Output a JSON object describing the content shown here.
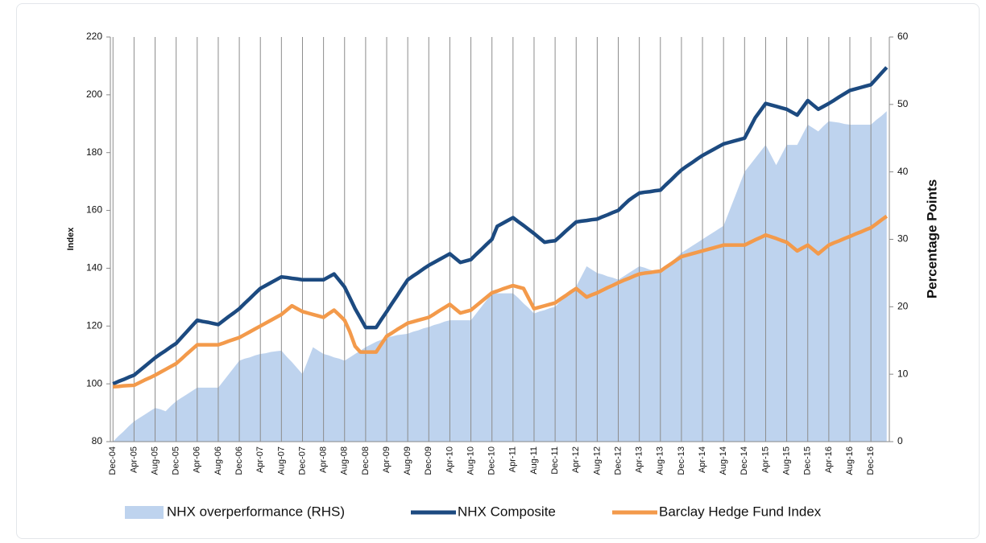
{
  "chart_data": {
    "type": "line",
    "categories": [
      "Dec-04",
      null,
      null,
      null,
      "Apr-05",
      null,
      null,
      null,
      "Aug-05",
      null,
      null,
      null,
      "Dec-05",
      null,
      null,
      null,
      "Apr-06",
      null,
      null,
      null,
      "Aug-06",
      null,
      null,
      null,
      "Dec-06",
      null,
      null,
      null,
      "Apr-07",
      null,
      null,
      null,
      "Aug-07",
      null,
      null,
      null,
      "Dec-07",
      null,
      null,
      null,
      "Apr-08",
      null,
      null,
      null,
      "Aug-08",
      null,
      null,
      null,
      "Dec-08",
      null,
      null,
      null,
      "Apr-09",
      null,
      null,
      null,
      "Aug-09",
      null,
      null,
      null,
      "Dec-09",
      null,
      null,
      null,
      "Apr-10",
      null,
      null,
      null,
      "Aug-10",
      null,
      null,
      null,
      "Dec-10",
      null,
      null,
      null,
      "Apr-11",
      null,
      null,
      null,
      "Aug-11",
      null,
      null,
      null,
      "Dec-11",
      null,
      null,
      null,
      "Apr-12",
      null,
      null,
      null,
      "Aug-12",
      null,
      null,
      null,
      "Dec-12",
      null,
      null,
      null,
      "Apr-13",
      null,
      null,
      null,
      "Aug-13",
      null,
      null,
      null,
      "Dec-13",
      null,
      null,
      null,
      "Apr-14",
      null,
      null,
      null,
      "Aug-14",
      null,
      null,
      null,
      "Dec-14",
      null,
      null,
      null,
      "Apr-15",
      null,
      null,
      null,
      "Aug-15",
      null,
      null,
      null,
      "Dec-15",
      null,
      null,
      null,
      "Apr-16",
      null,
      null,
      null,
      "Aug-16",
      null,
      null,
      null,
      "Dec-16",
      null,
      null,
      null
    ],
    "series": [
      {
        "name": "NHX overperformance (RHS)",
        "type": "area",
        "axis": "y2",
        "color": "#bed3ee",
        "values": [
          0,
          0.8,
          1.5,
          2.3,
          3,
          3.5,
          4,
          4.5,
          5,
          4.8,
          4.5,
          5.3,
          6,
          6.5,
          7,
          7.5,
          8,
          8,
          8,
          8,
          8,
          9,
          10,
          11,
          12,
          12.3,
          12.5,
          12.8,
          13,
          13.1,
          13.3,
          13.4,
          13.5,
          12.6,
          11.8,
          10.9,
          10,
          12,
          14,
          13.5,
          13,
          12.8,
          12.5,
          12.3,
          12,
          12.5,
          13,
          13.5,
          14,
          14.4,
          14.8,
          15.1,
          15.5,
          15.6,
          15.8,
          15.9,
          16,
          16.3,
          16.5,
          16.8,
          17,
          17.3,
          17.5,
          17.8,
          18,
          18,
          18,
          18,
          18,
          19,
          20,
          21,
          22,
          22,
          22,
          22,
          22,
          21.3,
          20.5,
          19.8,
          19,
          19.3,
          19.5,
          19.8,
          20,
          20.8,
          21.5,
          22.3,
          23,
          24.5,
          26,
          25.5,
          25,
          24.8,
          24.5,
          24.3,
          24,
          24.5,
          25,
          25.5,
          26,
          25.8,
          25.5,
          25.3,
          25,
          25.8,
          26.5,
          27.3,
          28,
          28.5,
          29,
          29.5,
          30,
          30.5,
          31,
          31.5,
          32,
          34,
          36,
          38,
          40,
          41,
          42,
          43,
          44,
          42.5,
          41,
          42.5,
          44,
          44,
          44,
          45.5,
          47,
          46.5,
          46,
          46.8,
          47.5,
          47.4,
          47.3,
          47.1,
          47,
          47,
          47,
          47,
          47,
          47.7,
          48.3,
          49
        ]
      },
      {
        "name": "NHX Composite",
        "type": "line",
        "color": "#1c4a80",
        "values": [
          100,
          100.8,
          101.5,
          102.3,
          103,
          104.5,
          106,
          107.5,
          109,
          110.3,
          111.5,
          112.8,
          114,
          116,
          118,
          120,
          122,
          121.6,
          121.3,
          120.9,
          120.5,
          121.9,
          123.3,
          124.6,
          126,
          127.8,
          129.5,
          131.3,
          133,
          134,
          135,
          136,
          137,
          136.8,
          136.5,
          136.3,
          136,
          136,
          136,
          136,
          136,
          137,
          138,
          135.8,
          133.5,
          129.8,
          126,
          122.8,
          119.5,
          119.5,
          119.5,
          122.3,
          125,
          127.8,
          130.5,
          133.3,
          136,
          137.3,
          138.5,
          139.8,
          141,
          142,
          143,
          144,
          145,
          143.5,
          142,
          142.5,
          143,
          144.8,
          146.5,
          148.3,
          150,
          154.5,
          155.5,
          156.5,
          157.5,
          156.1,
          154.8,
          153.4,
          152,
          150.5,
          149,
          149.3,
          149.5,
          151.1,
          152.8,
          154.4,
          156,
          156.3,
          156.5,
          156.8,
          157,
          157.8,
          158.5,
          159.3,
          160,
          161.8,
          163.5,
          164.8,
          166,
          166.3,
          166.5,
          166.8,
          167,
          168.8,
          170.5,
          172.3,
          174,
          175.3,
          176.5,
          177.8,
          179,
          180,
          181,
          182,
          183,
          183.5,
          184,
          184.5,
          185,
          188.5,
          192,
          194.5,
          197,
          196.5,
          196,
          195.5,
          195,
          194,
          193,
          195.5,
          198,
          196.5,
          195,
          196,
          197,
          198.1,
          199.3,
          200.4,
          201.5,
          202,
          202.5,
          203,
          203.5,
          205.5,
          207.5,
          209.5
        ]
      },
      {
        "name": "Barclay Hedge Fund Index",
        "type": "line",
        "color": "#f39a4b",
        "values": [
          99,
          99.1,
          99.3,
          99.4,
          99.5,
          100.4,
          101.3,
          102.1,
          103,
          104,
          105,
          106,
          107,
          108.6,
          110.3,
          111.9,
          113.5,
          113.5,
          113.5,
          113.5,
          113.5,
          114.1,
          114.8,
          115.4,
          116,
          117,
          118,
          119,
          120,
          121,
          122,
          123,
          124,
          125.5,
          127,
          126,
          125,
          124.5,
          124,
          123.5,
          123,
          124.3,
          125.5,
          123.8,
          122,
          118,
          113,
          111,
          111,
          111,
          111,
          113.8,
          116.5,
          117.6,
          118.8,
          119.9,
          121,
          121.5,
          122,
          122.5,
          123,
          124.1,
          125.3,
          126.4,
          127.5,
          126,
          124.5,
          125,
          125.5,
          127,
          128.5,
          130,
          131.5,
          132.1,
          132.8,
          133.4,
          134,
          133.5,
          133,
          129.5,
          126,
          126.5,
          127,
          127.5,
          128,
          129.3,
          130.5,
          131.8,
          133,
          131.5,
          130,
          130.8,
          131.5,
          132.4,
          133.3,
          134.1,
          135,
          135.8,
          136.5,
          137.3,
          138,
          138.3,
          138.5,
          138.8,
          139,
          140.3,
          141.5,
          142.8,
          144,
          144.5,
          145,
          145.5,
          146,
          146.5,
          147,
          147.5,
          148,
          148,
          148,
          148,
          148,
          148.9,
          149.8,
          150.6,
          151.5,
          150.9,
          150.3,
          149.6,
          149,
          147.5,
          146,
          147,
          148,
          146.5,
          145,
          146.5,
          148,
          148.8,
          149.5,
          150.3,
          151,
          151.8,
          152.5,
          153.3,
          154,
          155.3,
          156.7,
          158
        ]
      }
    ],
    "ylabel": "Index",
    "y2label": "Percentage Points",
    "ylim": [
      80,
      220
    ],
    "yticks": [
      80,
      100,
      120,
      140,
      160,
      180,
      200,
      220
    ],
    "y2lim": [
      0,
      60
    ],
    "y2ticks": [
      0,
      10,
      20,
      30,
      40,
      50,
      60
    ],
    "grid": "x",
    "legend": "bottom"
  }
}
